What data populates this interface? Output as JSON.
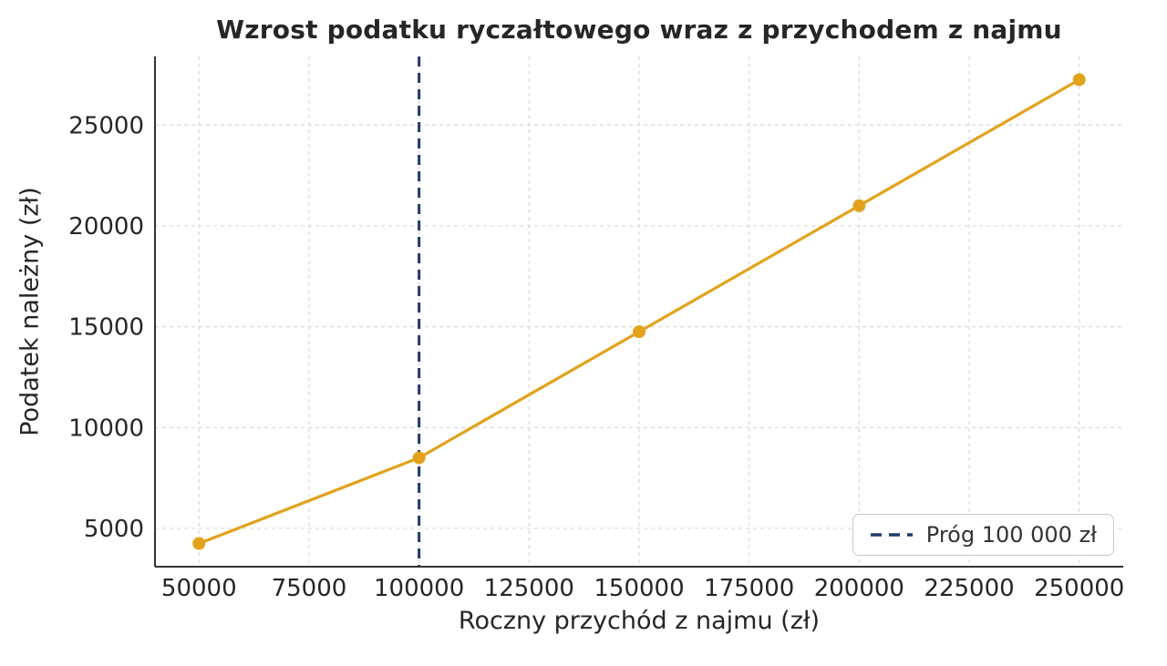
{
  "chart_data": {
    "type": "line",
    "title": "Wzrost podatku ryczałtowego wraz z przychodem z najmu",
    "xlabel": "Roczny przychód z najmu (zł)",
    "ylabel": "Podatek należny (zł)",
    "x": [
      50000,
      100000,
      150000,
      200000,
      250000
    ],
    "y": [
      4250,
      8500,
      14750,
      21000,
      27250
    ],
    "series_color": "#E2A21B",
    "xticks": [
      50000,
      75000,
      100000,
      125000,
      150000,
      175000,
      200000,
      225000,
      250000
    ],
    "yticks": [
      5000,
      10000,
      15000,
      20000,
      25000
    ],
    "xlim": [
      40000,
      260000
    ],
    "ylim": [
      3100,
      28400
    ],
    "grid": true,
    "grid_style": "dashed",
    "legend_position": "lower right",
    "threshold": {
      "x": 100000,
      "label": "Próg 100 000 zł",
      "color": "#22386F"
    }
  }
}
